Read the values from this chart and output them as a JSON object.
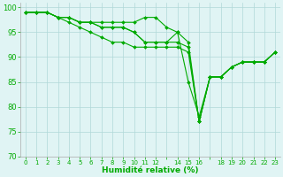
{
  "background_color": "#e0f4f4",
  "grid_color": "#b0d8d8",
  "line_color": "#00aa00",
  "marker_color": "#00aa00",
  "xlabel": "Humidité relative (%)",
  "xlabel_color": "#00aa00",
  "tick_color": "#00aa00",
  "ylim": [
    70,
    101
  ],
  "xlim": [
    -0.5,
    23.5
  ],
  "yticks": [
    70,
    75,
    80,
    85,
    90,
    95,
    100
  ],
  "xticks_all": [
    0,
    1,
    2,
    3,
    4,
    5,
    6,
    7,
    8,
    9,
    10,
    11,
    12,
    13,
    14,
    15,
    16,
    17,
    18,
    19,
    20,
    21,
    22,
    23
  ],
  "xtick_labels": [
    "0",
    "1",
    "2",
    "3",
    "4",
    "5",
    "6",
    "7",
    "8",
    "9",
    "10",
    "11",
    "12",
    "",
    "14",
    "15",
    "16",
    "",
    "18",
    "19",
    "20",
    "21",
    "22",
    "23"
  ],
  "series": [
    [
      99,
      99,
      99,
      98,
      98,
      97,
      97,
      97,
      97,
      97,
      97,
      98,
      98,
      96,
      95,
      85,
      78,
      86,
      86,
      88,
      89,
      89,
      89,
      91
    ],
    [
      99,
      99,
      99,
      98,
      98,
      97,
      97,
      96,
      96,
      96,
      95,
      93,
      93,
      93,
      93,
      92,
      77,
      86,
      86,
      88,
      89,
      89,
      89,
      91
    ],
    [
      99,
      99,
      99,
      98,
      98,
      97,
      97,
      96,
      96,
      96,
      95,
      93,
      93,
      93,
      95,
      93,
      77,
      86,
      86,
      88,
      89,
      89,
      89,
      91
    ],
    [
      99,
      99,
      99,
      98,
      97,
      96,
      95,
      94,
      93,
      93,
      92,
      92,
      92,
      92,
      92,
      91,
      77,
      86,
      86,
      88,
      89,
      89,
      89,
      91
    ]
  ],
  "x_positions": [
    0,
    1,
    2,
    3,
    4,
    5,
    6,
    7,
    8,
    9,
    10,
    11,
    12,
    13,
    14,
    15,
    16,
    17,
    18,
    19,
    20,
    21,
    22,
    23
  ]
}
